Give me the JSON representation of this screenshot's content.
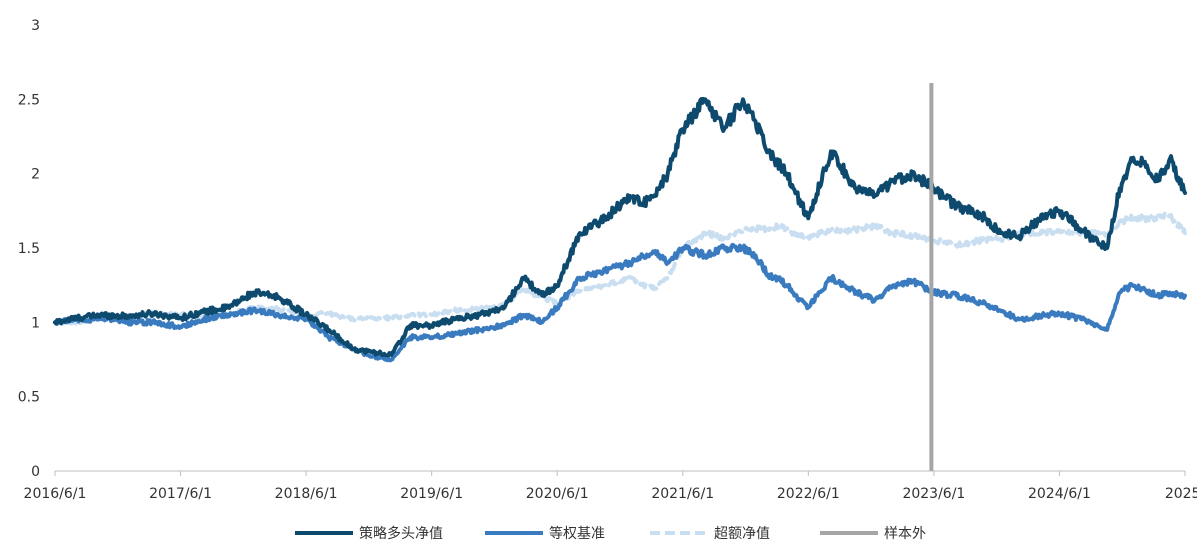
{
  "chart_data": {
    "type": "line",
    "title": "",
    "xlabel": "",
    "ylabel": "",
    "x_tick_labels": [
      "2016/6/1",
      "2017/6/1",
      "2018/6/1",
      "2019/6/1",
      "2020/6/1",
      "2021/6/1",
      "2022/6/1",
      "2023/6/1",
      "2024/6/1",
      "2025/"
    ],
    "y_tick_labels": [
      "0",
      "0.5",
      "1",
      "1.5",
      "2",
      "2.5",
      "3"
    ],
    "ylim": [
      0,
      3
    ],
    "xlim": [
      2016.42,
      2025.42
    ],
    "grid": false,
    "legend_position": "bottom",
    "out_of_sample_marker": {
      "name": "样本外",
      "x": 2023.4,
      "color": "#a6a6a6"
    },
    "series": [
      {
        "name": "策略多头净值",
        "color": "#0d4a6e",
        "style": "solid",
        "x": [
          2016.42,
          2016.6,
          2016.8,
          2017.0,
          2017.2,
          2017.42,
          2017.6,
          2017.8,
          2018.0,
          2018.2,
          2018.42,
          2018.6,
          2018.8,
          2018.95,
          2019.1,
          2019.25,
          2019.42,
          2019.6,
          2019.8,
          2020.0,
          2020.15,
          2020.3,
          2020.42,
          2020.6,
          2020.8,
          2021.0,
          2021.1,
          2021.2,
          2021.3,
          2021.42,
          2021.6,
          2021.75,
          2021.9,
          2022.0,
          2022.1,
          2022.2,
          2022.25,
          2022.3,
          2022.42,
          2022.6,
          2022.8,
          2022.95,
          2023.1,
          2023.25,
          2023.42,
          2023.6,
          2023.8,
          2023.95,
          2024.1,
          2024.3,
          2024.42,
          2024.6,
          2024.75,
          2024.8,
          2024.9,
          2025.0,
          2025.1,
          2025.2,
          2025.3,
          2025.42
        ],
        "values": [
          1.0,
          1.03,
          1.05,
          1.04,
          1.06,
          1.03,
          1.07,
          1.1,
          1.2,
          1.17,
          1.05,
          0.95,
          0.82,
          0.8,
          0.78,
          0.98,
          0.98,
          1.02,
          1.05,
          1.1,
          1.3,
          1.18,
          1.25,
          1.6,
          1.7,
          1.85,
          1.8,
          1.85,
          2.0,
          2.3,
          2.5,
          2.3,
          2.5,
          2.35,
          2.15,
          2.05,
          2.0,
          1.9,
          1.7,
          2.15,
          1.9,
          1.85,
          1.95,
          2.0,
          1.9,
          1.78,
          1.72,
          1.6,
          1.58,
          1.72,
          1.75,
          1.62,
          1.52,
          1.5,
          1.9,
          2.1,
          2.08,
          1.95,
          2.1,
          1.87
        ]
      },
      {
        "name": "等权基准",
        "color": "#3a7bbf",
        "style": "solid",
        "x": [
          2016.42,
          2016.6,
          2016.8,
          2017.0,
          2017.2,
          2017.42,
          2017.6,
          2017.8,
          2018.0,
          2018.2,
          2018.42,
          2018.6,
          2018.8,
          2018.95,
          2019.1,
          2019.25,
          2019.42,
          2019.6,
          2019.8,
          2020.0,
          2020.15,
          2020.3,
          2020.42,
          2020.6,
          2020.8,
          2021.0,
          2021.1,
          2021.2,
          2021.3,
          2021.42,
          2021.6,
          2021.75,
          2021.9,
          2022.0,
          2022.1,
          2022.2,
          2022.25,
          2022.3,
          2022.42,
          2022.6,
          2022.8,
          2022.95,
          2023.1,
          2023.25,
          2023.42,
          2023.6,
          2023.8,
          2023.95,
          2024.1,
          2024.3,
          2024.42,
          2024.6,
          2024.75,
          2024.8,
          2024.9,
          2025.0,
          2025.1,
          2025.2,
          2025.3,
          2025.42
        ],
        "values": [
          1.0,
          1.02,
          1.02,
          1.0,
          1.0,
          0.97,
          1.02,
          1.05,
          1.08,
          1.05,
          1.02,
          0.9,
          0.82,
          0.77,
          0.75,
          0.9,
          0.9,
          0.92,
          0.95,
          0.98,
          1.05,
          1.0,
          1.1,
          1.3,
          1.35,
          1.4,
          1.45,
          1.48,
          1.4,
          1.5,
          1.45,
          1.5,
          1.5,
          1.45,
          1.32,
          1.28,
          1.25,
          1.2,
          1.1,
          1.3,
          1.2,
          1.15,
          1.25,
          1.28,
          1.2,
          1.18,
          1.13,
          1.08,
          1.02,
          1.05,
          1.06,
          1.02,
          0.96,
          0.95,
          1.2,
          1.25,
          1.22,
          1.18,
          1.2,
          1.18
        ]
      },
      {
        "name": "超额净值",
        "color": "#c9def0",
        "style": "dashed",
        "x": [
          2016.42,
          2016.6,
          2016.8,
          2017.0,
          2017.2,
          2017.42,
          2017.6,
          2017.8,
          2018.0,
          2018.2,
          2018.42,
          2018.6,
          2018.8,
          2018.95,
          2019.1,
          2019.25,
          2019.42,
          2019.6,
          2019.8,
          2020.0,
          2020.15,
          2020.3,
          2020.42,
          2020.6,
          2020.8,
          2021.0,
          2021.1,
          2021.2,
          2021.3,
          2021.42,
          2021.6,
          2021.75,
          2021.9,
          2022.0,
          2022.1,
          2022.2,
          2022.25,
          2022.3,
          2022.42,
          2022.6,
          2022.8,
          2022.95,
          2023.1,
          2023.25,
          2023.42,
          2023.6,
          2023.8,
          2023.95,
          2024.1,
          2024.3,
          2024.42,
          2024.6,
          2024.75,
          2024.8,
          2024.9,
          2025.0,
          2025.1,
          2025.2,
          2025.3,
          2025.42
        ],
        "values": [
          1.0,
          1.0,
          1.03,
          1.04,
          1.06,
          1.05,
          1.05,
          1.05,
          1.1,
          1.09,
          1.05,
          1.06,
          1.02,
          1.03,
          1.03,
          1.05,
          1.05,
          1.08,
          1.09,
          1.12,
          1.22,
          1.17,
          1.13,
          1.21,
          1.25,
          1.3,
          1.25,
          1.23,
          1.3,
          1.5,
          1.6,
          1.57,
          1.62,
          1.63,
          1.63,
          1.65,
          1.63,
          1.6,
          1.57,
          1.62,
          1.62,
          1.65,
          1.6,
          1.58,
          1.55,
          1.52,
          1.55,
          1.56,
          1.6,
          1.6,
          1.62,
          1.6,
          1.6,
          1.58,
          1.68,
          1.7,
          1.7,
          1.7,
          1.72,
          1.6
        ]
      }
    ]
  },
  "legend": {
    "items": [
      {
        "label": "策略多头净值",
        "color": "#0d4a6e",
        "style": "solid"
      },
      {
        "label": "等权基准",
        "color": "#3a7bbf",
        "style": "solid"
      },
      {
        "label": "超额净值",
        "color": "#c9def0",
        "style": "dashed"
      },
      {
        "label": "样本外",
        "color": "#a6a6a6",
        "style": "solid"
      }
    ]
  }
}
